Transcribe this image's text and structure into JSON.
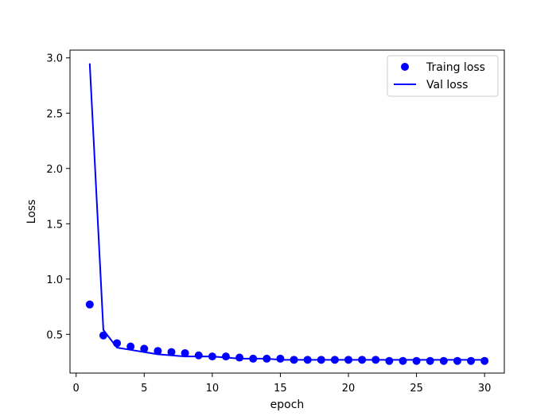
{
  "chart_data": {
    "type": "line",
    "title": "",
    "xlabel": "epoch",
    "ylabel": "Loss",
    "xlim": [
      -0.45,
      31.45
    ],
    "ylim": [
      0.15,
      3.07
    ],
    "xticks": [
      0,
      5,
      10,
      15,
      20,
      25,
      30
    ],
    "xtick_labels": [
      "0",
      "5",
      "10",
      "15",
      "20",
      "25",
      "30"
    ],
    "yticks": [
      0.5,
      1.0,
      1.5,
      2.0,
      2.5,
      3.0
    ],
    "ytick_labels": [
      "0.5",
      "1.0",
      "1.5",
      "2.0",
      "2.5",
      "3.0"
    ],
    "grid": false,
    "legend_position": "upper right",
    "x": [
      1,
      2,
      3,
      4,
      5,
      6,
      7,
      8,
      9,
      10,
      11,
      12,
      13,
      14,
      15,
      16,
      17,
      18,
      19,
      20,
      21,
      22,
      23,
      24,
      25,
      26,
      27,
      28,
      29,
      30
    ],
    "series": [
      {
        "name": "Traing loss",
        "style": "scatter",
        "color": "#0000ff",
        "values": [
          0.77,
          0.49,
          0.42,
          0.39,
          0.37,
          0.35,
          0.34,
          0.33,
          0.31,
          0.3,
          0.3,
          0.29,
          0.28,
          0.28,
          0.28,
          0.27,
          0.27,
          0.27,
          0.27,
          0.27,
          0.27,
          0.27,
          0.26,
          0.26,
          0.26,
          0.26,
          0.26,
          0.26,
          0.26,
          0.26
        ]
      },
      {
        "name": "Val loss",
        "style": "line",
        "color": "#0000ff",
        "values": [
          2.95,
          0.54,
          0.38,
          0.36,
          0.34,
          0.32,
          0.31,
          0.3,
          0.3,
          0.3,
          0.29,
          0.28,
          0.28,
          0.28,
          0.27,
          0.27,
          0.27,
          0.27,
          0.27,
          0.27,
          0.27,
          0.27,
          0.27,
          0.27,
          0.27,
          0.27,
          0.27,
          0.27,
          0.27,
          0.27
        ]
      }
    ]
  }
}
